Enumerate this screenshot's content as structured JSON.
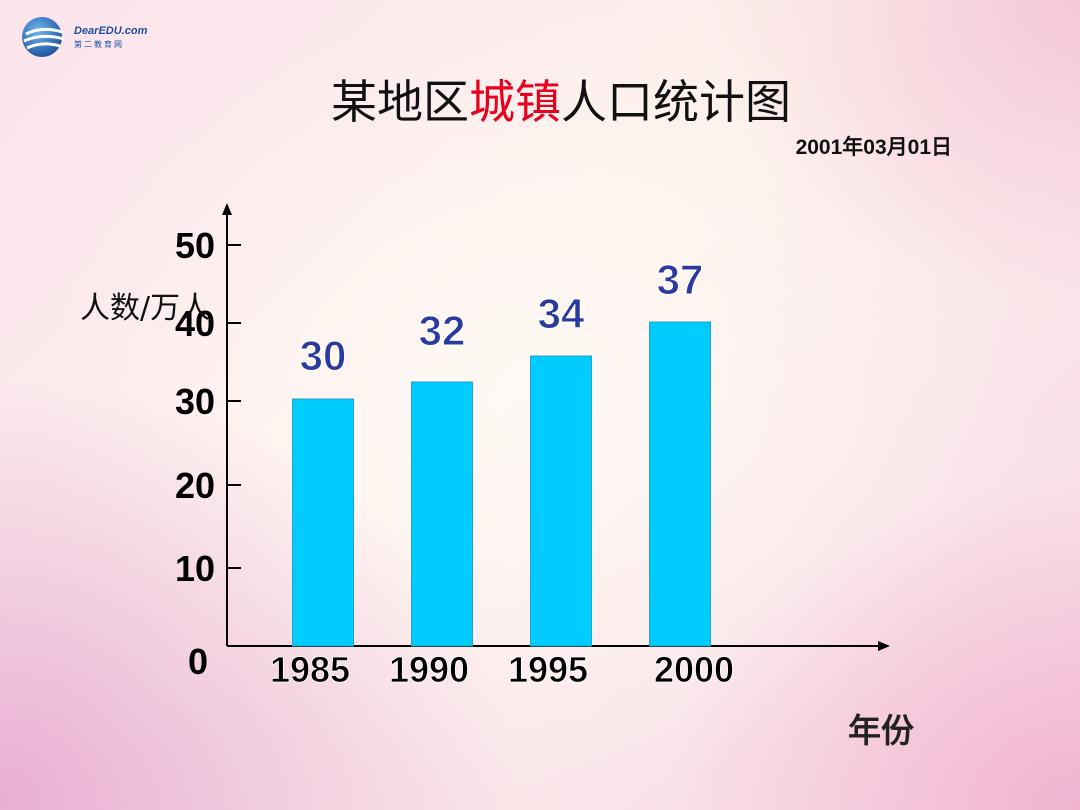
{
  "header": {
    "logo_text": "DearEDU.com",
    "logo_sub": "第二教育网"
  },
  "title": {
    "part1": "某地区",
    "highlight": "城镇",
    "part2": "人口统计图"
  },
  "date": "2001年03月01日",
  "colors": {
    "bar": "#00ccff",
    "value_label": "#2b3a9e",
    "title_highlight": "#e8001c",
    "axis": "#000000"
  },
  "chart_data": {
    "type": "bar",
    "categories": [
      "1985",
      "1990",
      "1995",
      "2000"
    ],
    "values": [
      30,
      32,
      34,
      37
    ],
    "value_labels": [
      "30",
      "32",
      "34",
      "37"
    ],
    "ylabel": "人数/万人",
    "xlabel": "年份",
    "yticks": [
      "0",
      "10",
      "20",
      "30",
      "40",
      "50"
    ],
    "ylim": [
      0,
      50
    ],
    "grid": false,
    "legend": "none"
  }
}
